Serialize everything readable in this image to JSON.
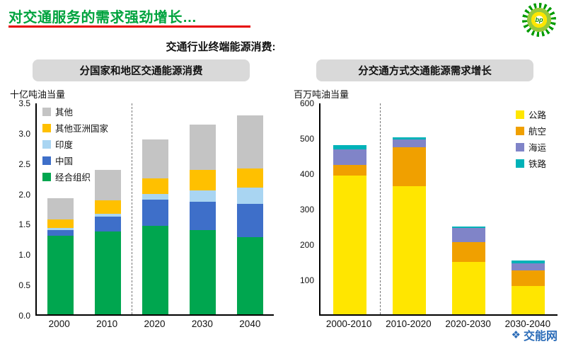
{
  "header": {
    "title": "对交通服务的需求强劲增长…",
    "subtitle": "交通行业终端能源消费:"
  },
  "logo": {
    "letters": "bp"
  },
  "watermark": {
    "text": "交能网"
  },
  "chart_data": [
    {
      "type": "bar",
      "stacked": true,
      "title": "分国家和地区交通能源消费",
      "unit_label": "十亿吨油当量",
      "categories": [
        "2000",
        "2010",
        "2020",
        "2030",
        "2040"
      ],
      "series": [
        {
          "name": "经合组织",
          "color": "#00A64F",
          "values": [
            1.3,
            1.38,
            1.47,
            1.4,
            1.28
          ]
        },
        {
          "name": "中国",
          "color": "#3E6FC9",
          "values": [
            0.1,
            0.24,
            0.43,
            0.47,
            0.55
          ]
        },
        {
          "name": "印度",
          "color": "#A9D5F2",
          "values": [
            0.03,
            0.05,
            0.1,
            0.18,
            0.27
          ]
        },
        {
          "name": "其他亚洲国家",
          "color": "#FFC000",
          "values": [
            0.14,
            0.22,
            0.25,
            0.35,
            0.32
          ]
        },
        {
          "name": "其他",
          "color": "#C4C4C4",
          "values": [
            0.36,
            0.51,
            0.65,
            0.75,
            0.88
          ]
        }
      ],
      "ylim": [
        0,
        3.5
      ],
      "yticks": [
        "3.5",
        "3.0",
        "2.5",
        "2.0",
        "1.5",
        "1.0",
        "0.5",
        "0.0"
      ],
      "legend_reversed": true,
      "legend_position": "top-left",
      "divider_fraction": 0.4,
      "grid": false
    },
    {
      "type": "bar",
      "stacked": true,
      "title": "分交通方式交通能源需求增长",
      "unit_label": "百万吨油当量",
      "categories": [
        "2000-2010",
        "2010-2020",
        "2020-2030",
        "2030-2040"
      ],
      "series": [
        {
          "name": "公路",
          "color": "#FFE600",
          "values": [
            395,
            365,
            150,
            80
          ]
        },
        {
          "name": "航空",
          "color": "#F0A000",
          "values": [
            30,
            110,
            55,
            45
          ]
        },
        {
          "name": "海运",
          "color": "#8084C8",
          "values": [
            45,
            22,
            40,
            20
          ]
        },
        {
          "name": "铁路",
          "color": "#00B2B8",
          "values": [
            12,
            6,
            5,
            8
          ]
        }
      ],
      "ylim": [
        0,
        600
      ],
      "yticks": [
        "600",
        "500",
        "400",
        "300",
        "200",
        "100"
      ],
      "legend_reversed": false,
      "legend_position": "top-right",
      "divider_fraction": 0.25,
      "grid": false
    }
  ]
}
